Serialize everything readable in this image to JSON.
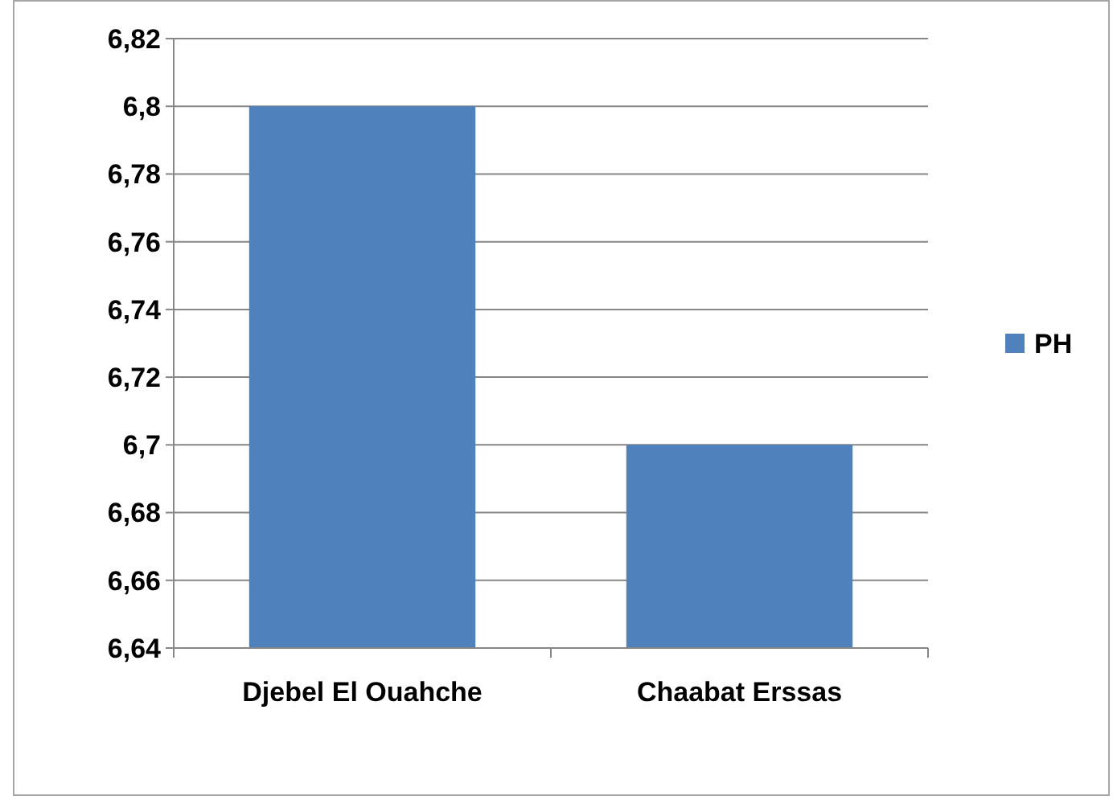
{
  "chart_data": {
    "type": "bar",
    "categories": [
      "Djebel El Ouahche",
      "Chaabat Erssas"
    ],
    "series": [
      {
        "name": "PH",
        "color": "#4f81bd",
        "values": [
          6.8,
          6.7
        ]
      }
    ],
    "ylim": [
      6.64,
      6.82
    ],
    "yticks": [
      {
        "value": 6.64,
        "label": "6,64"
      },
      {
        "value": 6.66,
        "label": "6,66"
      },
      {
        "value": 6.68,
        "label": "6,68"
      },
      {
        "value": 6.7,
        "label": "6,7"
      },
      {
        "value": 6.72,
        "label": "6,72"
      },
      {
        "value": 6.74,
        "label": "6,74"
      },
      {
        "value": 6.76,
        "label": "6,76"
      },
      {
        "value": 6.78,
        "label": "6,78"
      },
      {
        "value": 6.8,
        "label": "6,8"
      },
      {
        "value": 6.82,
        "label": "6,82"
      }
    ],
    "grid": "y",
    "legend": "right"
  }
}
